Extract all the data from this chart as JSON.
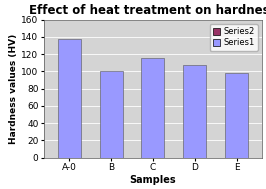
{
  "title": "Effect of heat treatment on hardness",
  "xlabel": "Samples",
  "ylabel": "Hardness values (HV)",
  "categories": [
    "A-0",
    "B",
    "C",
    "D",
    "E"
  ],
  "series1_values": [
    138,
    101,
    116,
    107,
    98
  ],
  "series1_color": "#9999ff",
  "series2_color": "#993366",
  "ylim": [
    0,
    160
  ],
  "yticks": [
    0,
    20,
    40,
    60,
    80,
    100,
    120,
    140,
    160
  ],
  "fig_bg_color": "#ffffff",
  "plot_bg_color": "#d4d4d4",
  "legend_series2_label": "Series2",
  "legend_series1_label": "Series1",
  "title_fontsize": 8.5,
  "label_fontsize": 7,
  "tick_fontsize": 6.5
}
